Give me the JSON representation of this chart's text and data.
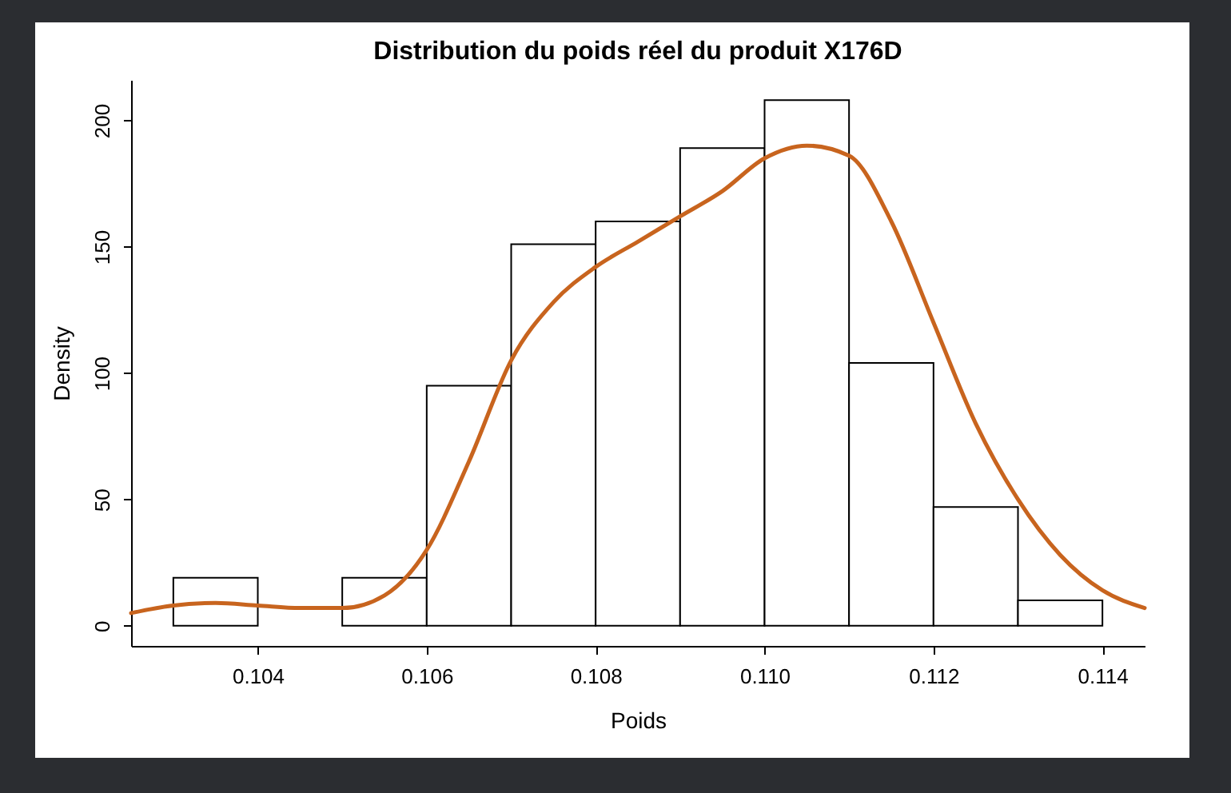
{
  "chart_data": {
    "type": "histogram",
    "title": "Distribution du poids réel du produit X176D",
    "xlabel": "Poids",
    "ylabel": "Density",
    "bins": [
      0.103,
      0.104,
      0.105,
      0.106,
      0.107,
      0.108,
      0.109,
      0.11,
      0.111,
      0.112,
      0.113,
      0.114
    ],
    "values": [
      19,
      0,
      19,
      95,
      151,
      160,
      189,
      208,
      104,
      47,
      10
    ],
    "color": "#ffffff",
    "series": [
      {
        "type": "line",
        "color": "#c8641e",
        "x": [
          0.1025,
          0.103,
          0.1035,
          0.104,
          0.1045,
          0.105,
          0.1055,
          0.106,
          0.1065,
          0.107,
          0.1075,
          0.108,
          0.1085,
          0.109,
          0.1095,
          0.11,
          0.1105,
          0.111,
          0.1115,
          0.112,
          0.1125,
          0.113,
          0.1135,
          0.114,
          0.1145
        ],
        "values": [
          5,
          8,
          9,
          8,
          7,
          7,
          12,
          30,
          65,
          105,
          128,
          142,
          152,
          162,
          172,
          185,
          190,
          186,
          160,
          120,
          80,
          50,
          28,
          14,
          7
        ]
      }
    ],
    "xlim": [
      0.1025,
      0.1145
    ],
    "xticks": [
      {
        "value": 0.104,
        "label": "0.104"
      },
      {
        "value": 0.106,
        "label": "0.106"
      },
      {
        "value": 0.108,
        "label": "0.108"
      },
      {
        "value": 0.11,
        "label": "0.110"
      },
      {
        "value": 0.112,
        "label": "0.112"
      },
      {
        "value": 0.114,
        "label": "0.114"
      }
    ],
    "ylim": [
      -8,
      216
    ],
    "yticks": [
      0,
      50,
      100,
      150,
      200
    ],
    "grid": false
  }
}
